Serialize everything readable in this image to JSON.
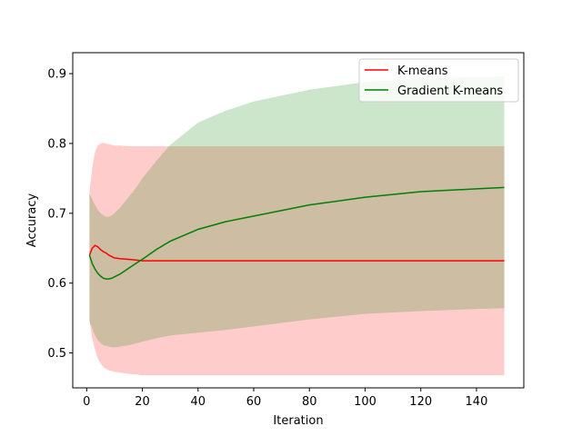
{
  "chart_data": {
    "type": "line",
    "title": "",
    "xlabel": "Iteration",
    "ylabel": "Accuracy",
    "xlim": [
      -5,
      157
    ],
    "ylim": [
      0.45,
      0.93
    ],
    "xticks": [
      0,
      20,
      40,
      60,
      80,
      100,
      120,
      140
    ],
    "yticks": [
      0.5,
      0.6,
      0.7,
      0.8,
      0.9
    ],
    "grid": false,
    "legend_position": "top-right",
    "series": [
      {
        "name": "K-means",
        "color": "#ff0000",
        "band_color": "#ff0000",
        "band_opacity": 0.2,
        "x": [
          1,
          2,
          3,
          4,
          5,
          6,
          7,
          8,
          9,
          10,
          12,
          15,
          18,
          20,
          25,
          30,
          40,
          50,
          60,
          80,
          100,
          120,
          140,
          150
        ],
        "mean": [
          0.64,
          0.65,
          0.654,
          0.652,
          0.648,
          0.645,
          0.643,
          0.64,
          0.638,
          0.636,
          0.635,
          0.634,
          0.633,
          0.632,
          0.632,
          0.632,
          0.632,
          0.632,
          0.632,
          0.632,
          0.632,
          0.632,
          0.632,
          0.632
        ],
        "lower": [
          0.548,
          0.52,
          0.505,
          0.492,
          0.485,
          0.48,
          0.477,
          0.475,
          0.474,
          0.473,
          0.472,
          0.47,
          0.469,
          0.468,
          0.468,
          0.468,
          0.468,
          0.468,
          0.468,
          0.468,
          0.468,
          0.468,
          0.468,
          0.468
        ],
        "upper": [
          0.73,
          0.765,
          0.788,
          0.797,
          0.8,
          0.801,
          0.8,
          0.799,
          0.798,
          0.797,
          0.797,
          0.796,
          0.796,
          0.796,
          0.796,
          0.796,
          0.796,
          0.796,
          0.796,
          0.796,
          0.796,
          0.796,
          0.796,
          0.796
        ]
      },
      {
        "name": "Gradient K-means",
        "color": "#008000",
        "band_color": "#008000",
        "band_opacity": 0.2,
        "x": [
          1,
          2,
          3,
          4,
          5,
          6,
          7,
          8,
          9,
          10,
          12,
          15,
          18,
          20,
          25,
          30,
          40,
          50,
          60,
          80,
          100,
          120,
          140,
          150
        ],
        "mean": [
          0.64,
          0.628,
          0.62,
          0.614,
          0.61,
          0.607,
          0.606,
          0.606,
          0.607,
          0.609,
          0.613,
          0.621,
          0.629,
          0.634,
          0.648,
          0.66,
          0.677,
          0.688,
          0.696,
          0.712,
          0.723,
          0.731,
          0.735,
          0.737
        ],
        "lower": [
          0.545,
          0.535,
          0.525,
          0.518,
          0.514,
          0.511,
          0.51,
          0.509,
          0.508,
          0.508,
          0.509,
          0.511,
          0.514,
          0.516,
          0.521,
          0.525,
          0.529,
          0.533,
          0.538,
          0.548,
          0.556,
          0.56,
          0.563,
          0.564
        ],
        "upper": [
          0.728,
          0.72,
          0.712,
          0.705,
          0.7,
          0.697,
          0.695,
          0.695,
          0.697,
          0.7,
          0.708,
          0.723,
          0.738,
          0.75,
          0.775,
          0.798,
          0.83,
          0.847,
          0.86,
          0.877,
          0.888,
          0.893,
          0.895,
          0.896
        ]
      }
    ]
  }
}
